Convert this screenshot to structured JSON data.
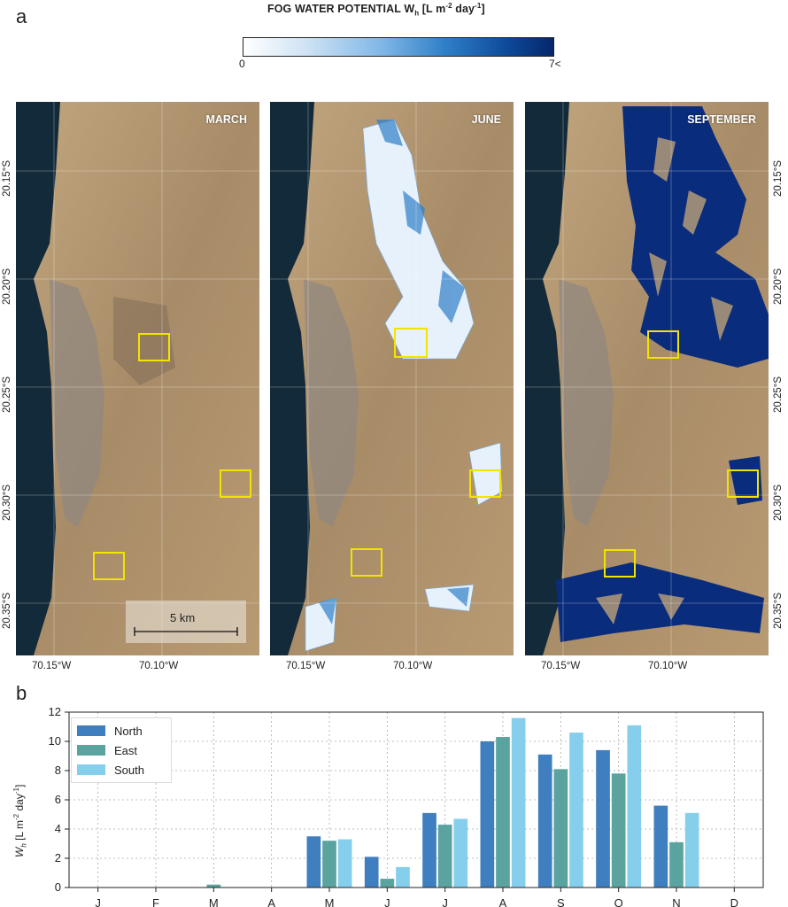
{
  "panel_a": {
    "letter": "a",
    "colorbar": {
      "title_main": "FOG WATER POTENTIAL W",
      "title_sub": "h",
      "title_units_a": " [L m",
      "title_units_sup1": "-2",
      "title_units_b": " day",
      "title_units_sup2": "-1",
      "title_units_c": "]",
      "min_label": "0",
      "max_label": "7<"
    },
    "maps": [
      {
        "label": "MARCH"
      },
      {
        "label": "JUNE"
      },
      {
        "label": "SEPTEMBER"
      }
    ],
    "lat_labels": [
      "20.15°S",
      "20.20°S",
      "20.25°S",
      "20.30°S",
      "20.35°S"
    ],
    "lon_labels": [
      "70.15°W",
      "70.10°W"
    ],
    "scale_bar": "5 km",
    "colors": {
      "ocean": "#122a3a",
      "land": "#b39a78",
      "fog_dark": "#0a2c7c",
      "highlight": "#f2e400"
    }
  },
  "panel_b": {
    "letter": "b",
    "colors": {
      "North": "#3f7fbf",
      "East": "#5ba39f",
      "South": "#86cfec"
    }
  },
  "chart_data": {
    "type": "bar",
    "categories": [
      "J",
      "F",
      "M",
      "A",
      "M",
      "J",
      "J",
      "A",
      "S",
      "O",
      "N",
      "D"
    ],
    "series": [
      {
        "name": "North",
        "values": [
          0,
          0,
          0,
          0,
          3.5,
          2.1,
          5.1,
          10.0,
          9.1,
          9.4,
          5.6,
          0
        ]
      },
      {
        "name": "East",
        "values": [
          0,
          0,
          0.2,
          0,
          3.2,
          0.6,
          4.3,
          10.3,
          8.1,
          7.8,
          3.1,
          0
        ]
      },
      {
        "name": "South",
        "values": [
          0,
          0,
          0,
          0,
          3.3,
          1.4,
          4.7,
          11.6,
          10.6,
          11.1,
          5.1,
          0
        ]
      }
    ],
    "ylabel_main": "W",
    "ylabel_sub": "h",
    "ylabel_units_a": " [L m",
    "ylabel_units_sup1": "-2",
    "ylabel_units_b": " day",
    "ylabel_units_sup2": "-1",
    "ylabel_units_c": "]",
    "ylim": [
      0,
      12
    ],
    "yticks": [
      0,
      2,
      4,
      6,
      8,
      10,
      12
    ],
    "grid": true,
    "legend": "top-left"
  }
}
